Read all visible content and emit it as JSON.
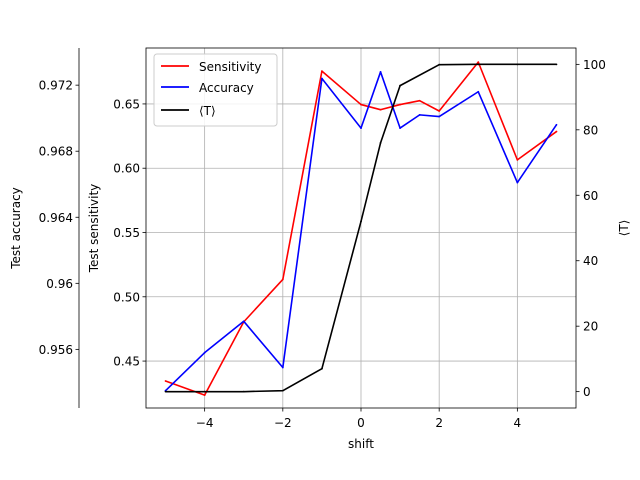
{
  "chart_data": {
    "type": "line",
    "xlabel": "shift",
    "ylabel_left_outer": "Test accuracy",
    "ylabel_left_inner": "Test sensitivity",
    "ylabel_right": "⟨T⟩",
    "xlim": [
      -5.5,
      5.5
    ],
    "x_ticks": [
      -4,
      -2,
      0,
      2,
      4
    ],
    "x_tick_labels": [
      "−4",
      "−2",
      "0",
      "2",
      "4"
    ],
    "sensitivity_axis": {
      "ylim": [
        0.4135,
        0.6935
      ],
      "ticks": [
        0.45,
        0.5,
        0.55,
        0.6,
        0.65
      ],
      "tick_labels": [
        "0.45",
        "0.50",
        "0.55",
        "0.60",
        "0.65"
      ]
    },
    "accuracy_axis": {
      "ylim": [
        0.95245,
        0.97425
      ],
      "ticks": [
        0.956,
        0.96,
        0.964,
        0.968,
        0.972
      ],
      "tick_labels": [
        "0.956",
        "0.96",
        "0.964",
        "0.968",
        "0.972"
      ]
    },
    "temperature_axis": {
      "ylim": [
        -5,
        105
      ],
      "ticks": [
        0,
        20,
        40,
        60,
        80,
        100
      ],
      "tick_labels": [
        "0",
        "20",
        "40",
        "60",
        "80",
        "100"
      ]
    },
    "grid": true,
    "legend_position": "upper-left",
    "series": [
      {
        "name": "Sensitivity",
        "axis": "sensitivity",
        "color": "#ff0000",
        "x": [
          -5,
          -4,
          -3,
          -2,
          -1,
          0,
          0.5,
          1,
          1.5,
          2,
          3,
          4,
          5
        ],
        "y": [
          0.4345,
          0.4235,
          0.4805,
          0.5135,
          0.6755,
          0.6495,
          0.6455,
          0.6495,
          0.6525,
          0.6445,
          0.6825,
          0.6065,
          0.6285
        ]
      },
      {
        "name": "Accuracy",
        "axis": "accuracy",
        "color": "#0000ff",
        "x": [
          -5,
          -4,
          -3,
          -2,
          -1,
          0,
          0.5,
          1,
          1.5,
          2,
          3,
          4,
          5
        ],
        "y": [
          0.9535,
          0.9558,
          0.9577,
          0.9549,
          0.9724,
          0.9694,
          0.9728,
          0.9694,
          0.9702,
          0.9701,
          0.9716,
          0.9661,
          0.9696
        ]
      },
      {
        "name": "⟨T⟩",
        "axis": "temperature",
        "color": "#000000",
        "x": [
          -5,
          -4,
          -3,
          -2,
          -1,
          0,
          0.5,
          1,
          2,
          3,
          4,
          5
        ],
        "y": [
          0,
          0,
          0,
          0.3,
          7,
          52,
          76,
          93.5,
          99.9,
          100,
          100,
          100
        ]
      }
    ]
  }
}
